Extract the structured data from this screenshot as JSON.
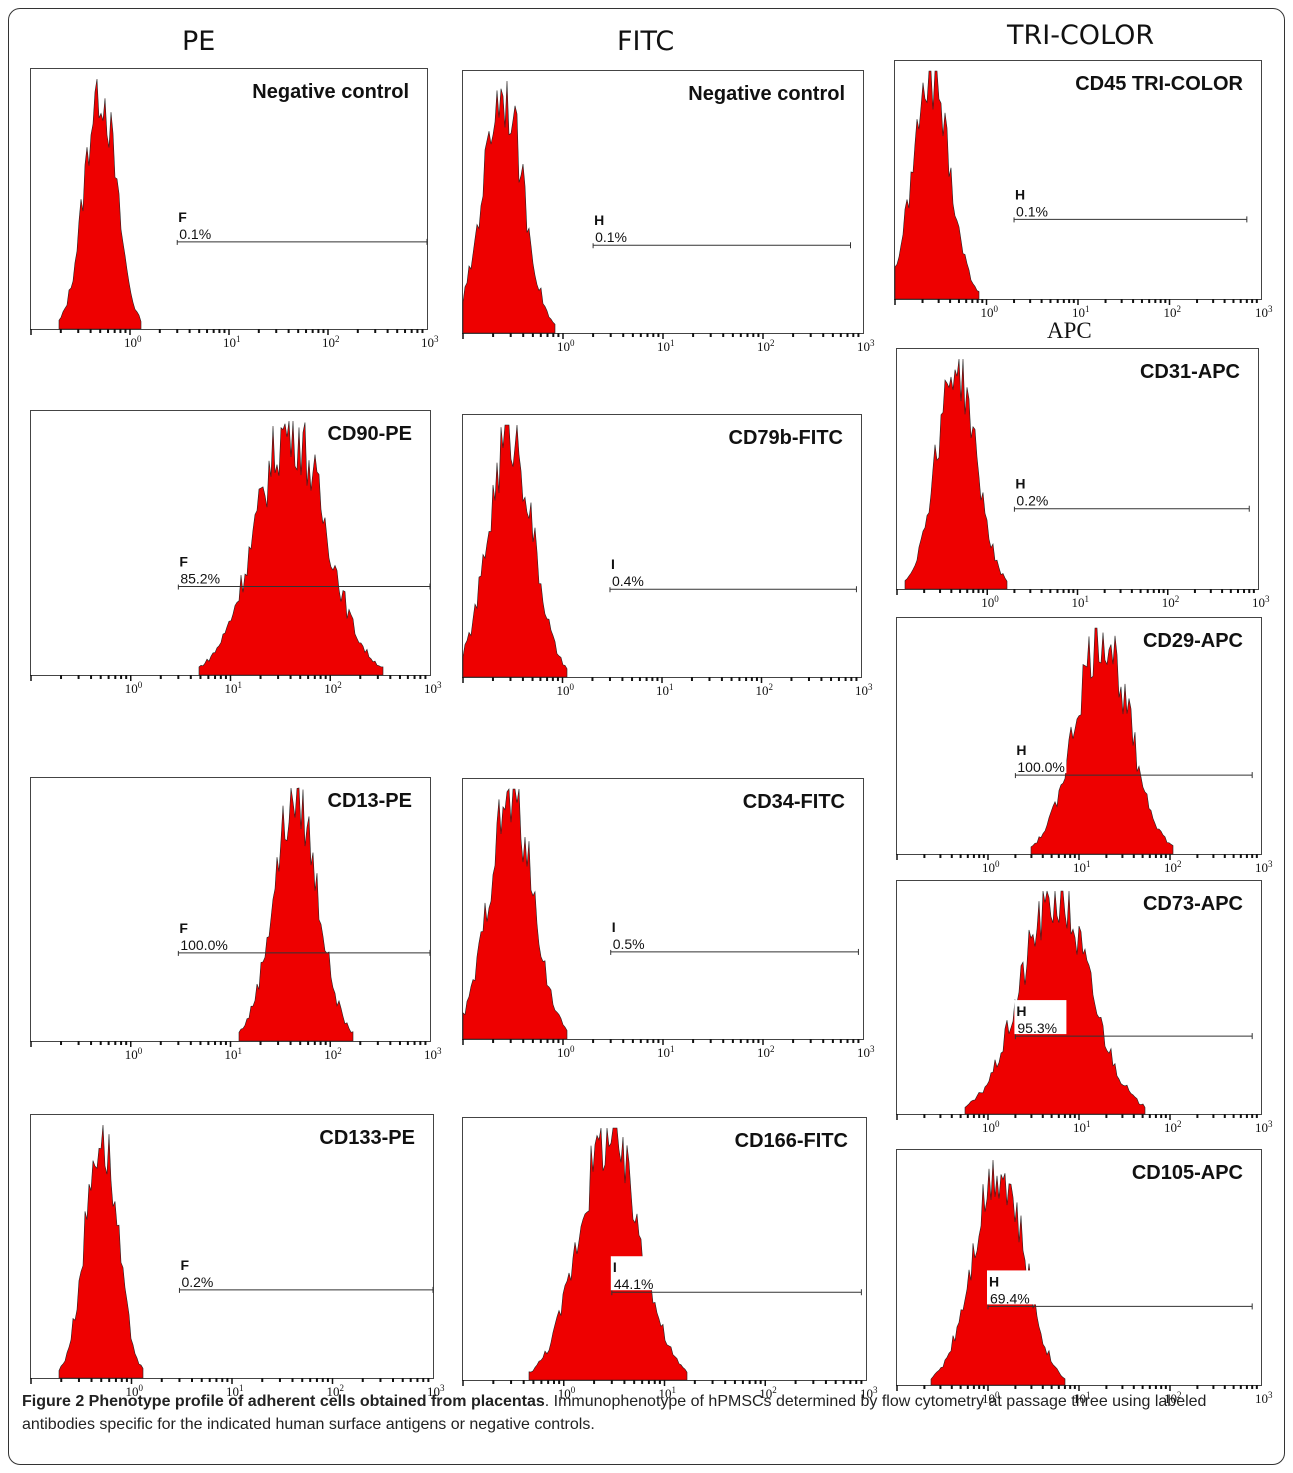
{
  "figure": {
    "column_headers": [
      "PE",
      "FITC",
      "TRI-COLOR"
    ],
    "apc_header": "APC",
    "caption": {
      "title": "Figure 2 Phenotype profile of adherent cells obtained from placentas",
      "text": ". Immunophenotype of hPMSCs determined by flow cytometry at passage three using labeled antibodies specific for the indicated human surface antigens or negative controls."
    }
  },
  "chart_data": [
    {
      "type": "area",
      "title": "Negative control",
      "channel": "PE",
      "gate_label": "F",
      "gate_percent": "0.1%",
      "x_log_range": [
        0.1,
        1000
      ],
      "x_ticks": [
        "10^0",
        "10^1",
        "10^2",
        "10^3"
      ],
      "gate_start": 3,
      "gate_end": 1000,
      "peak_center": 0.5,
      "peak_width": 0.16
    },
    {
      "type": "area",
      "title": "CD90-PE",
      "channel": "PE",
      "gate_label": "F",
      "gate_percent": "85.2%",
      "x_log_range": [
        0.1,
        1000
      ],
      "x_ticks": [
        "10^0",
        "10^1",
        "10^2",
        "10^3"
      ],
      "gate_start": 3,
      "gate_end": 1000,
      "peak_center": 40,
      "peak_width": 0.35
    },
    {
      "type": "area",
      "title": "CD13-PE",
      "channel": "PE",
      "gate_label": "F",
      "gate_percent": "100.0%",
      "x_log_range": [
        0.1,
        1000
      ],
      "x_ticks": [
        "10^0",
        "10^1",
        "10^2",
        "10^3"
      ],
      "gate_start": 3,
      "gate_end": 1000,
      "peak_center": 45,
      "peak_width": 0.22
    },
    {
      "type": "area",
      "title": "CD133-PE",
      "channel": "PE",
      "gate_label": "F",
      "gate_percent": "0.2%",
      "x_log_range": [
        0.1,
        1000
      ],
      "x_ticks": [
        "10^0",
        "10^1",
        "10^2",
        "10^3"
      ],
      "gate_start": 3,
      "gate_end": 1000,
      "peak_center": 0.5,
      "peak_width": 0.16
    },
    {
      "type": "area",
      "title": "Negative control",
      "channel": "FITC",
      "gate_label": "H",
      "gate_percent": "0.1%",
      "x_log_range": [
        0.1,
        1000
      ],
      "x_ticks": [
        "10^0",
        "10^1",
        "10^2",
        "10^3"
      ],
      "gate_start": 2,
      "gate_end": 750,
      "peak_center": 0.25,
      "peak_width": 0.2
    },
    {
      "type": "area",
      "title": "CD79b-FITC",
      "channel": "FITC",
      "gate_label": "I",
      "gate_percent": "0.4%",
      "x_log_range": [
        0.1,
        1000
      ],
      "x_ticks": [
        "10^0",
        "10^1",
        "10^2",
        "10^3"
      ],
      "gate_start": 3,
      "gate_end": 900,
      "peak_center": 0.3,
      "peak_width": 0.22
    },
    {
      "type": "area",
      "title": "CD34-FITC",
      "channel": "FITC",
      "gate_label": "I",
      "gate_percent": "0.5%",
      "x_log_range": [
        0.1,
        1000
      ],
      "x_ticks": [
        "10^0",
        "10^1",
        "10^2",
        "10^3"
      ],
      "gate_start": 3,
      "gate_end": 900,
      "peak_center": 0.3,
      "peak_width": 0.22
    },
    {
      "type": "area",
      "title": "CD166-FITC",
      "channel": "FITC",
      "gate_label": "I",
      "gate_percent": "44.1%",
      "x_log_range": [
        0.1,
        1000
      ],
      "x_ticks": [
        "10^0",
        "10^1",
        "10^2",
        "10^3"
      ],
      "gate_start": 3,
      "gate_end": 900,
      "peak_center": 2.8,
      "peak_width": 0.3
    },
    {
      "type": "area",
      "title": "CD45  TRI-COLOR",
      "channel": "TRI-COLOR",
      "gate_label": "H",
      "gate_percent": "0.1%",
      "x_log_range": [
        0.1,
        1000
      ],
      "x_ticks": [
        "10^0",
        "10^1",
        "10^2",
        "10^3"
      ],
      "gate_start": 2,
      "gate_end": 700,
      "peak_center": 0.25,
      "peak_width": 0.2
    },
    {
      "type": "area",
      "title": "CD31-APC",
      "channel": "APC",
      "gate_label": "H",
      "gate_percent": "0.2%",
      "x_log_range": [
        0.1,
        1000
      ],
      "x_ticks": [
        "10^0",
        "10^1",
        "10^2",
        "10^3"
      ],
      "gate_start": 2,
      "gate_end": 800,
      "peak_center": 0.45,
      "peak_width": 0.22
    },
    {
      "type": "area",
      "title": "CD29-APC",
      "channel": "APC",
      "gate_label": "H",
      "gate_percent": "100.0%",
      "x_log_range": [
        0.1,
        1000
      ],
      "x_ticks": [
        "10^0",
        "10^1",
        "10^2",
        "10^3"
      ],
      "gate_start": 2,
      "gate_end": 800,
      "peak_center": 18,
      "peak_width": 0.3
    },
    {
      "type": "area",
      "title": "CD73-APC",
      "channel": "APC",
      "gate_label": "H",
      "gate_percent": "95.3%",
      "x_log_range": [
        0.1,
        1000
      ],
      "x_ticks": [
        "10^0",
        "10^1",
        "10^2",
        "10^3"
      ],
      "gate_start": 2,
      "gate_end": 800,
      "peak_center": 5.5,
      "peak_width": 0.38
    },
    {
      "type": "area",
      "title": "CD105-APC",
      "channel": "APC",
      "gate_label": "H",
      "gate_percent": "69.4%",
      "x_log_range": [
        0.1,
        1000
      ],
      "x_ticks": [
        "10^0",
        "10^1",
        "10^2",
        "10^3"
      ],
      "gate_start": 1,
      "gate_end": 800,
      "peak_center": 1.3,
      "peak_width": 0.28
    }
  ],
  "colors": {
    "histogram_fill": "#ee0000",
    "outline": "#222222",
    "frame": "#333333"
  }
}
